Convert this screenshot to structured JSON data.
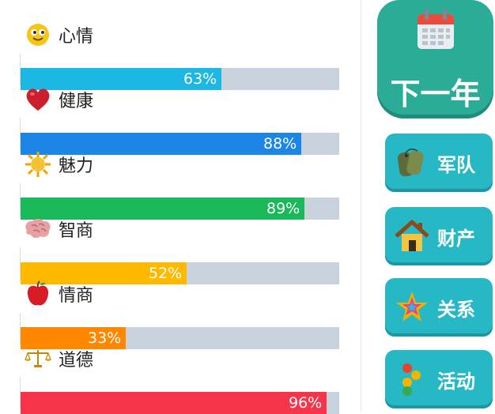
{
  "stats": [
    {
      "label": "心情",
      "icon": "smiley-icon",
      "percent_text": "63%",
      "value": 63,
      "color": "#1cb7e3"
    },
    {
      "label": "健康",
      "icon": "heart-icon",
      "percent_text": "88%",
      "value": 88,
      "color": "#1b86e6"
    },
    {
      "label": "魅力",
      "icon": "sun-icon",
      "percent_text": "89%",
      "value": 89,
      "color": "#19b85a"
    },
    {
      "label": "智商",
      "icon": "brain-icon",
      "percent_text": "52%",
      "value": 52,
      "color": "#ffba00"
    },
    {
      "label": "情商",
      "icon": "apple-icon",
      "percent_text": "33%",
      "value": 33,
      "color": "#ff8800"
    },
    {
      "label": "道德",
      "icon": "scales-icon",
      "percent_text": "96%",
      "value": 96,
      "color": "#f6344a"
    }
  ],
  "next_year": {
    "label": "下一年",
    "icon": "calendar-icon",
    "color": "#2aac96"
  },
  "side_buttons": [
    {
      "label": "军队",
      "icon": "dog-tags-icon"
    },
    {
      "label": "财产",
      "icon": "house-icon"
    },
    {
      "label": "关系",
      "icon": "stars-icon"
    },
    {
      "label": "活动",
      "icon": "dots-icon"
    }
  ],
  "colors": {
    "track": "#c9d3dd",
    "button": "#27b8c5"
  }
}
